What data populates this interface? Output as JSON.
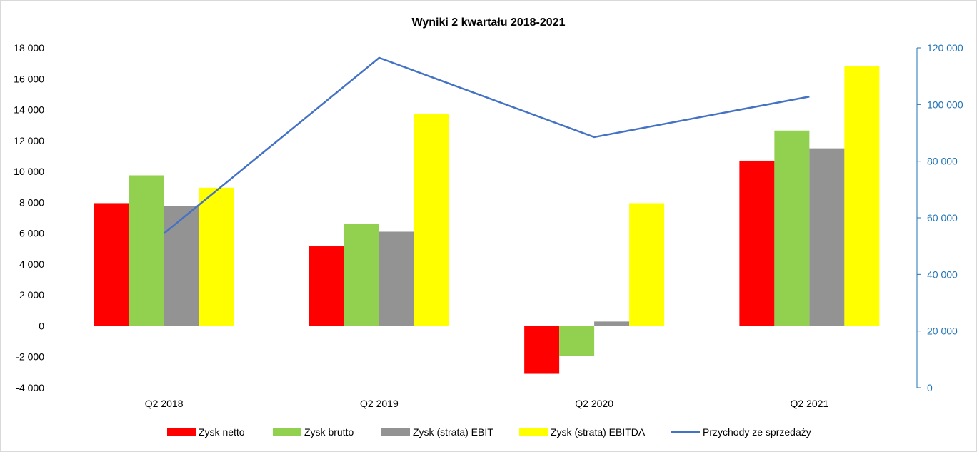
{
  "chart_data": {
    "type": "bar",
    "title": "Wyniki 2 kwartału 2018-2021",
    "categories": [
      "Q2 2018",
      "Q2 2019",
      "Q2 2020",
      "Q2 2021"
    ],
    "series": [
      {
        "name": "Zysk netto",
        "type": "bar",
        "axis": "left",
        "color": "#ff0000",
        "values": [
          7950,
          5150,
          -3100,
          10700
        ]
      },
      {
        "name": "Zysk brutto",
        "type": "bar",
        "axis": "left",
        "color": "#92d050",
        "values": [
          9750,
          6600,
          -1950,
          12650
        ]
      },
      {
        "name": "Zysk (strata) EBIT",
        "type": "bar",
        "axis": "left",
        "color": "#939393",
        "values": [
          7750,
          6100,
          280,
          11500
        ]
      },
      {
        "name": "Zysk (strata) EBITDA",
        "type": "bar",
        "axis": "left",
        "color": "#ffff00",
        "values": [
          8950,
          13750,
          7950,
          16800
        ]
      },
      {
        "name": "Przychody ze sprzedaży",
        "type": "line",
        "axis": "right",
        "color": "#4472c4",
        "values": [
          54500,
          116500,
          88500,
          102800
        ]
      }
    ],
    "y_left": {
      "min": -4000,
      "max": 18000,
      "step": 2000,
      "tick_labels": [
        "-4 000",
        "-2 000",
        "0",
        "2 000",
        "4 000",
        "6 000",
        "8 000",
        "10 000",
        "12 000",
        "14 000",
        "16 000",
        "18 000"
      ]
    },
    "y_right": {
      "min": 0,
      "max": 120000,
      "step": 20000,
      "color": "#1f73b6",
      "tick_labels": [
        "0",
        "20 000",
        "40 000",
        "60 000",
        "80 000",
        "100 000",
        "120 000"
      ]
    },
    "legend_position": "bottom",
    "grid": false
  }
}
